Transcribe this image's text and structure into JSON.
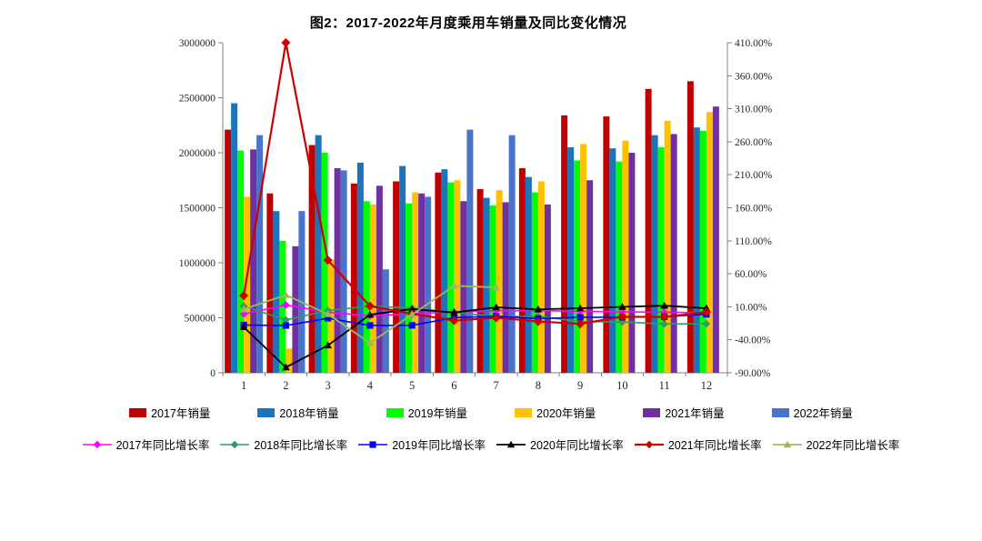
{
  "title": "图2：2017-2022年月度乘用车销量及同比变化情况",
  "chart_data": {
    "type": "bar+line combo",
    "grid": false,
    "legend_position": "bottom",
    "categories": [
      "1",
      "2",
      "3",
      "4",
      "5",
      "6",
      "7",
      "8",
      "9",
      "10",
      "11",
      "12"
    ],
    "left_axis": {
      "min": 0,
      "max": 3000000,
      "step": 500000,
      "ticks": [
        "3000000",
        "2500000",
        "2000000",
        "1500000",
        "1000000",
        "500000",
        "0"
      ]
    },
    "right_axis": {
      "min": -90,
      "max": 410,
      "step": 50,
      "ticks": [
        "410.00%",
        "360.00%",
        "310.00%",
        "260.00%",
        "210.00%",
        "160.00%",
        "110.00%",
        "60.00%",
        "10.00%",
        "-40.00%",
        "-90.00%"
      ]
    },
    "bar_series": [
      {
        "name": "2017年销量",
        "color": "#C00000",
        "values": [
          2210000,
          1630000,
          2070000,
          1720000,
          1740000,
          1820000,
          1670000,
          1860000,
          2340000,
          2330000,
          2580000,
          2650000
        ]
      },
      {
        "name": "2018年销量",
        "color": "#1B75BC",
        "values": [
          2450000,
          1470000,
          2160000,
          1910000,
          1880000,
          1850000,
          1590000,
          1780000,
          2050000,
          2040000,
          2160000,
          2230000
        ]
      },
      {
        "name": "2019年销量",
        "color": "#00FF00",
        "values": [
          2020000,
          1200000,
          2000000,
          1560000,
          1540000,
          1730000,
          1520000,
          1640000,
          1930000,
          1920000,
          2050000,
          2200000
        ]
      },
      {
        "name": "2020年销量",
        "color": "#FFC000",
        "values": [
          1600000,
          220000,
          1030000,
          1530000,
          1640000,
          1750000,
          1660000,
          1740000,
          2080000,
          2110000,
          2290000,
          2370000
        ]
      },
      {
        "name": "2021年销量",
        "color": "#7030A0",
        "values": [
          2030000,
          1150000,
          1860000,
          1700000,
          1630000,
          1560000,
          1550000,
          1530000,
          1750000,
          2000000,
          2170000,
          2420000
        ]
      },
      {
        "name": "2022年销量",
        "color": "#4874CB",
        "values": [
          2160000,
          1470000,
          1840000,
          940000,
          1600000,
          2210000,
          2160000,
          null,
          null,
          null,
          null,
          null
        ]
      }
    ],
    "line_series": [
      {
        "name": "2017年同比增长率",
        "color": "#FF00FF",
        "marker": "diamond",
        "width": 1.6,
        "values": [
          -1.0,
          12.7,
          1.7,
          -3.7,
          -0.5,
          2.3,
          4.3,
          4.1,
          3.3,
          2.3,
          1.9,
          0.9
        ]
      },
      {
        "name": "2018年同比增长率",
        "color": "#339966",
        "marker": "diamond",
        "width": 1.6,
        "values": [
          10.9,
          -9.8,
          4.3,
          11.0,
          8.0,
          1.6,
          -5.0,
          -4.3,
          -12.4,
          -13.0,
          -16.1,
          -15.8
        ]
      },
      {
        "name": "2019年同比增长率",
        "color": "#0000FF",
        "marker": "square",
        "width": 1.6,
        "values": [
          -17.6,
          -18.4,
          -7.4,
          -18.3,
          -18.1,
          -6.5,
          -4.4,
          -7.9,
          -5.9,
          -5.9,
          -5.1,
          -1.3
        ]
      },
      {
        "name": "2020年同比增长率",
        "color": "#000000",
        "marker": "triangle",
        "width": 1.8,
        "values": [
          -20.8,
          -81.7,
          -48.5,
          -1.9,
          6.5,
          1.2,
          9.2,
          6.1,
          7.8,
          9.9,
          11.7,
          7.7
        ]
      },
      {
        "name": "2021年同比增长率",
        "color": "#CC0000",
        "marker": "diamond",
        "width": 2.2,
        "values": [
          26.9,
          410.0,
          80.6,
          11.1,
          -0.6,
          -10.9,
          -6.6,
          -12.3,
          -15.9,
          -5.0,
          -5.5,
          2.1
        ]
      },
      {
        "name": "2022年同比增长率",
        "color": "#9BBB59",
        "marker": "triangle",
        "width": 1.8,
        "values": [
          6.4,
          27.8,
          -1.1,
          -44.7,
          -1.8,
          41.7,
          39.4,
          null,
          null,
          null,
          null,
          null
        ]
      }
    ]
  }
}
